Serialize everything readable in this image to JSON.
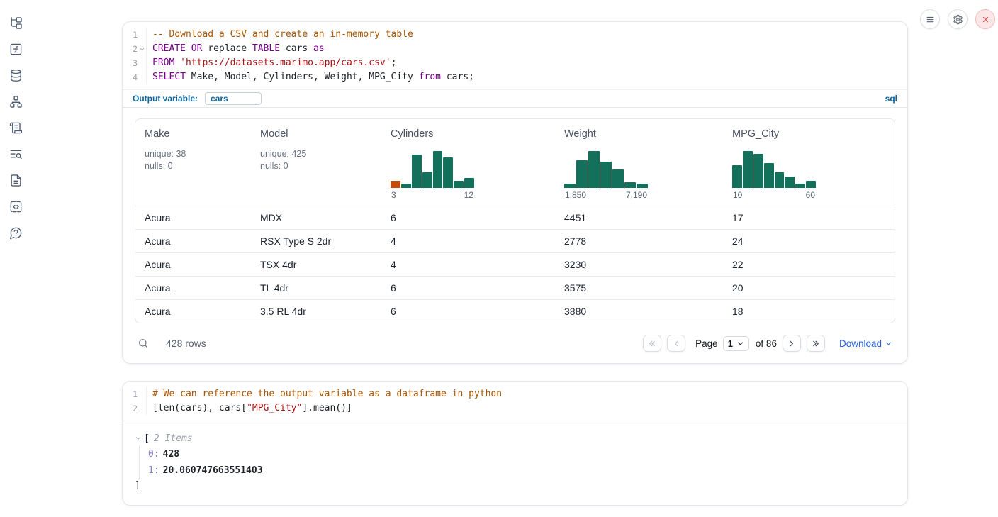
{
  "theme": {
    "hist_green": "#13705a",
    "hist_orange": "#c24b0e",
    "accent_blue": "#0b649c",
    "link_blue": "#2563eb",
    "keyword_purple": "#770088",
    "comment_brown": "#aa5500",
    "string_red": "#aa1111"
  },
  "sidebar": {
    "items": [
      {
        "icon": "file-tree"
      },
      {
        "icon": "function-square"
      },
      {
        "icon": "database"
      },
      {
        "icon": "dependency-graph"
      },
      {
        "icon": "scroll"
      },
      {
        "icon": "text-search"
      },
      {
        "icon": "file-text"
      },
      {
        "icon": "code-snippet"
      },
      {
        "icon": "help-bubble"
      }
    ]
  },
  "window_controls": {
    "items": [
      {
        "icon": "menu",
        "danger": false
      },
      {
        "icon": "gear",
        "danger": false
      },
      {
        "icon": "close",
        "danger": true
      }
    ]
  },
  "sql_cell": {
    "language_badge": "sql",
    "output_variable": {
      "label": "Output variable:",
      "value": "cars"
    },
    "lines": [
      {
        "num": "1",
        "fold": false,
        "tokens": [
          {
            "c": "com",
            "t": "-- Download a CSV and create an in-memory table"
          }
        ]
      },
      {
        "num": "2",
        "fold": true,
        "tokens": [
          {
            "c": "kw",
            "t": "CREATE"
          },
          {
            "c": "pl",
            "t": " "
          },
          {
            "c": "kw",
            "t": "OR"
          },
          {
            "c": "pl",
            "t": " replace "
          },
          {
            "c": "kw",
            "t": "TABLE"
          },
          {
            "c": "pl",
            "t": " cars "
          },
          {
            "c": "kw",
            "t": "as"
          }
        ]
      },
      {
        "num": "3",
        "fold": false,
        "tokens": [
          {
            "c": "kw",
            "t": "FROM"
          },
          {
            "c": "pl",
            "t": " "
          },
          {
            "c": "str",
            "t": "'https://datasets.marimo.app/cars.csv'"
          },
          {
            "c": "pl",
            "t": ";"
          }
        ]
      },
      {
        "num": "4",
        "fold": false,
        "tokens": [
          {
            "c": "kw",
            "t": "SELECT"
          },
          {
            "c": "pl",
            "t": " Make, Model, Cylinders, Weight, MPG_City "
          },
          {
            "c": "kw",
            "t": "from"
          },
          {
            "c": "pl",
            "t": " cars;"
          }
        ]
      }
    ]
  },
  "table": {
    "columns": [
      {
        "name": "Make",
        "meta": [
          "unique: 38",
          "nulls: 0"
        ]
      },
      {
        "name": "Model",
        "meta": [
          "unique: 425",
          "nulls: 0"
        ]
      },
      {
        "name": "Cylinders",
        "hist": {
          "bars": [
            0.2,
            0.12,
            0.9,
            0.42,
            1.0,
            0.82,
            0.2,
            0.26
          ],
          "bar_colors": {
            "0": "#c24b0e"
          },
          "min_label": "3",
          "max_label": "12"
        }
      },
      {
        "name": "Weight",
        "hist": {
          "bars": [
            0.12,
            0.75,
            1.0,
            0.72,
            0.5,
            0.16,
            0.12
          ],
          "bar_colors": {},
          "min_label": "1,850",
          "max_label": "7,190"
        }
      },
      {
        "name": "MPG_City",
        "hist": {
          "bars": [
            0.62,
            1.0,
            0.92,
            0.68,
            0.42,
            0.3,
            0.12,
            0.2
          ],
          "bar_colors": {},
          "min_label": "10",
          "max_label": "60"
        }
      }
    ],
    "rows": [
      [
        "Acura",
        "MDX",
        "6",
        "4451",
        "17"
      ],
      [
        "Acura",
        "RSX Type S 2dr",
        "4",
        "2778",
        "24"
      ],
      [
        "Acura",
        "TSX 4dr",
        "4",
        "3230",
        "22"
      ],
      [
        "Acura",
        "TL 4dr",
        "6",
        "3575",
        "20"
      ],
      [
        "Acura",
        "3.5 RL 4dr",
        "6",
        "3880",
        "18"
      ]
    ],
    "row_count": "428 rows",
    "pagination": {
      "page_label": "Page",
      "page_value": "1",
      "total_label": "of 86",
      "download_label": "Download"
    }
  },
  "python_cell": {
    "lines": [
      {
        "num": "1",
        "fold": false,
        "tokens": [
          {
            "c": "com",
            "t": "# We can reference the output variable as a dataframe in python"
          }
        ]
      },
      {
        "num": "2",
        "fold": false,
        "tokens": [
          {
            "c": "pl",
            "t": "[len(cars), cars["
          },
          {
            "c": "str",
            "t": "\"MPG_City\""
          },
          {
            "c": "pl",
            "t": "].mean()]"
          }
        ]
      }
    ]
  },
  "output_tree": {
    "bracket_open": "[",
    "items_label": "2 Items",
    "entries": [
      {
        "key": "0:",
        "value": "428"
      },
      {
        "key": "1:",
        "value": "20.060747663551403"
      }
    ],
    "bracket_close": "]"
  }
}
